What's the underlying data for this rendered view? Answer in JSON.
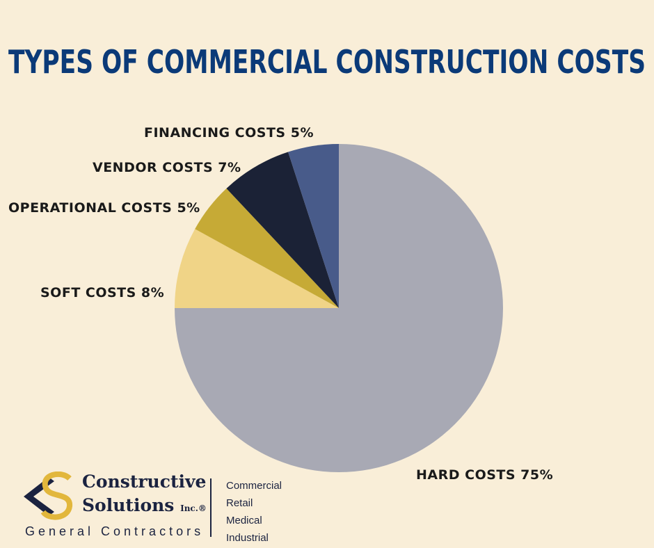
{
  "chart_data": {
    "type": "pie",
    "title": "TYPES OF COMMERCIAL CONSTRUCTION COSTS",
    "slices": [
      {
        "label": "HARD COSTS 75%",
        "name": "Hard Costs",
        "value": 75,
        "color": "#a8a9b4"
      },
      {
        "label": "SOFT COSTS 8%",
        "name": "Soft Costs",
        "value": 8,
        "color": "#f0d487"
      },
      {
        "label": "OPERATIONAL COSTS 5%",
        "name": "Operational Costs",
        "value": 5,
        "color": "#c6aa36"
      },
      {
        "label": "VENDOR COSTS 7%",
        "name": "Vendor Costs",
        "value": 7,
        "color": "#1b2236"
      },
      {
        "label": "FINANCING COSTS 5%",
        "name": "Financing Costs",
        "value": 5,
        "color": "#485b8a"
      }
    ],
    "start": "12 o'clock",
    "direction": "clockwise"
  },
  "colors": {
    "background": "#f9eed8",
    "title": "#0b3a78",
    "brand_navy": "#1b2340",
    "brand_gold": "#e2b73c"
  },
  "footer": {
    "brand_line1": "Constructive",
    "brand_line2": "Solutions",
    "brand_suffix": "Inc.®",
    "tagline": "General Contractors",
    "sectors": [
      "Commercial",
      "Retail",
      "Medical",
      "Industrial"
    ]
  }
}
